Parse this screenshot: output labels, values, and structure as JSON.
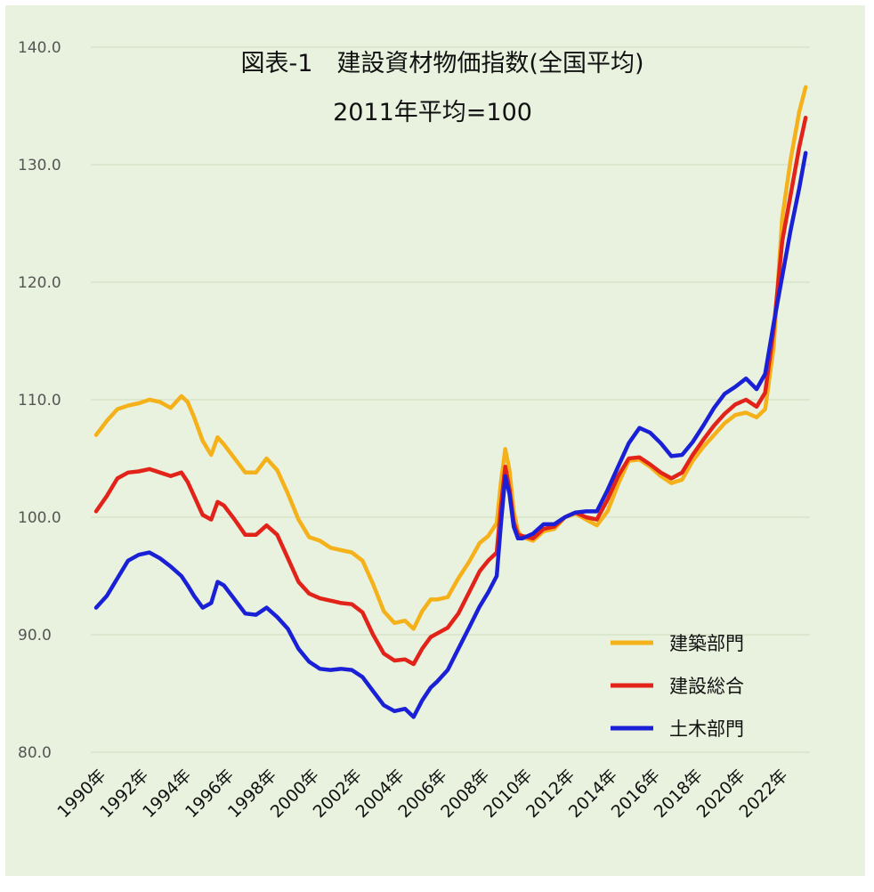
{
  "chart_data": {
    "type": "line",
    "title": "図表-1　建設資材物価指数(全国平均)",
    "subtitle": "2011年平均=100",
    "ylim": [
      80,
      140
    ],
    "yticks": [
      80,
      90,
      100,
      110,
      120,
      130,
      140
    ],
    "ytick_labels": [
      "80.0",
      "90.0",
      "100.0",
      "110.0",
      "120.0",
      "130.0",
      "140.0"
    ],
    "xlim": [
      1990.0,
      2023.5
    ],
    "xticks": [
      1990,
      1992,
      1994,
      1996,
      1998,
      2000,
      2002,
      2004,
      2006,
      2008,
      2010,
      2012,
      2014,
      2016,
      2018,
      2020,
      2022
    ],
    "xtick_labels": [
      "1990年",
      "1992年",
      "1994年",
      "1996年",
      "1998年",
      "2000年",
      "2002年",
      "2004年",
      "2006年",
      "2008年",
      "2010年",
      "2012年",
      "2014年",
      "2016年",
      "2018年",
      "2020年",
      "2022年"
    ],
    "grid": "horizontal",
    "legend_position": "bottom-right",
    "background_color": "#e9f2df",
    "series": [
      {
        "name": "建築部門",
        "color": "#f5b11a",
        "points": [
          [
            1990.0,
            107.0
          ],
          [
            1990.5,
            108.2
          ],
          [
            1991.0,
            109.2
          ],
          [
            1991.5,
            109.5
          ],
          [
            1992.0,
            109.7
          ],
          [
            1992.5,
            110.0
          ],
          [
            1993.0,
            109.8
          ],
          [
            1993.5,
            109.3
          ],
          [
            1994.0,
            110.3
          ],
          [
            1994.3,
            109.8
          ],
          [
            1994.6,
            108.5
          ],
          [
            1995.0,
            106.5
          ],
          [
            1995.4,
            105.3
          ],
          [
            1995.7,
            106.8
          ],
          [
            1996.0,
            106.2
          ],
          [
            1996.5,
            105.0
          ],
          [
            1997.0,
            103.8
          ],
          [
            1997.5,
            103.8
          ],
          [
            1998.0,
            105.0
          ],
          [
            1998.5,
            104.0
          ],
          [
            1999.0,
            102.0
          ],
          [
            1999.5,
            99.8
          ],
          [
            2000.0,
            98.3
          ],
          [
            2000.5,
            98.0
          ],
          [
            2001.0,
            97.4
          ],
          [
            2001.5,
            97.2
          ],
          [
            2002.0,
            97.0
          ],
          [
            2002.5,
            96.3
          ],
          [
            2003.0,
            94.3
          ],
          [
            2003.5,
            92.0
          ],
          [
            2004.0,
            91.0
          ],
          [
            2004.5,
            91.2
          ],
          [
            2004.9,
            90.5
          ],
          [
            2005.3,
            92.0
          ],
          [
            2005.7,
            93.0
          ],
          [
            2006.0,
            93.0
          ],
          [
            2006.5,
            93.2
          ],
          [
            2007.0,
            94.8
          ],
          [
            2007.5,
            96.2
          ],
          [
            2008.0,
            97.8
          ],
          [
            2008.4,
            98.4
          ],
          [
            2008.8,
            99.5
          ],
          [
            2009.0,
            103.0
          ],
          [
            2009.2,
            105.8
          ],
          [
            2009.4,
            104.0
          ],
          [
            2009.6,
            100.5
          ],
          [
            2009.8,
            98.8
          ],
          [
            2010.0,
            98.3
          ],
          [
            2010.5,
            98.0
          ],
          [
            2011.0,
            98.8
          ],
          [
            2011.5,
            99.0
          ],
          [
            2012.0,
            100.0
          ],
          [
            2012.5,
            100.3
          ],
          [
            2013.0,
            99.8
          ],
          [
            2013.5,
            99.3
          ],
          [
            2014.0,
            100.5
          ],
          [
            2014.5,
            102.8
          ],
          [
            2015.0,
            104.8
          ],
          [
            2015.5,
            104.9
          ],
          [
            2016.0,
            104.3
          ],
          [
            2016.5,
            103.5
          ],
          [
            2017.0,
            102.9
          ],
          [
            2017.5,
            103.2
          ],
          [
            2018.0,
            104.8
          ],
          [
            2018.5,
            106.0
          ],
          [
            2019.0,
            107.0
          ],
          [
            2019.5,
            108.0
          ],
          [
            2020.0,
            108.7
          ],
          [
            2020.5,
            108.9
          ],
          [
            2021.0,
            108.5
          ],
          [
            2021.4,
            109.2
          ],
          [
            2021.8,
            114.5
          ],
          [
            2022.2,
            125.5
          ],
          [
            2022.6,
            130.5
          ],
          [
            2023.0,
            134.5
          ],
          [
            2023.3,
            136.6
          ]
        ]
      },
      {
        "name": "建設総合",
        "color": "#e2231a",
        "points": [
          [
            1990.0,
            100.5
          ],
          [
            1990.5,
            101.8
          ],
          [
            1991.0,
            103.3
          ],
          [
            1991.5,
            103.8
          ],
          [
            1992.0,
            103.9
          ],
          [
            1992.5,
            104.1
          ],
          [
            1993.0,
            103.8
          ],
          [
            1993.5,
            103.5
          ],
          [
            1994.0,
            103.8
          ],
          [
            1994.3,
            103.0
          ],
          [
            1994.6,
            101.8
          ],
          [
            1995.0,
            100.2
          ],
          [
            1995.4,
            99.8
          ],
          [
            1995.7,
            101.3
          ],
          [
            1996.0,
            101.0
          ],
          [
            1996.5,
            99.8
          ],
          [
            1997.0,
            98.5
          ],
          [
            1997.5,
            98.5
          ],
          [
            1998.0,
            99.3
          ],
          [
            1998.5,
            98.5
          ],
          [
            1999.0,
            96.5
          ],
          [
            1999.5,
            94.5
          ],
          [
            2000.0,
            93.5
          ],
          [
            2000.5,
            93.1
          ],
          [
            2001.0,
            92.9
          ],
          [
            2001.5,
            92.7
          ],
          [
            2002.0,
            92.6
          ],
          [
            2002.5,
            91.9
          ],
          [
            2003.0,
            90.0
          ],
          [
            2003.5,
            88.4
          ],
          [
            2004.0,
            87.8
          ],
          [
            2004.5,
            87.9
          ],
          [
            2004.9,
            87.5
          ],
          [
            2005.3,
            88.8
          ],
          [
            2005.7,
            89.8
          ],
          [
            2006.0,
            90.1
          ],
          [
            2006.5,
            90.6
          ],
          [
            2007.0,
            91.8
          ],
          [
            2007.5,
            93.6
          ],
          [
            2008.0,
            95.4
          ],
          [
            2008.4,
            96.3
          ],
          [
            2008.8,
            97.0
          ],
          [
            2009.0,
            101.0
          ],
          [
            2009.2,
            104.3
          ],
          [
            2009.4,
            102.4
          ],
          [
            2009.6,
            99.6
          ],
          [
            2009.8,
            98.5
          ],
          [
            2010.0,
            98.4
          ],
          [
            2010.5,
            98.2
          ],
          [
            2011.0,
            99.0
          ],
          [
            2011.5,
            99.2
          ],
          [
            2012.0,
            100.0
          ],
          [
            2012.5,
            100.4
          ],
          [
            2013.0,
            100.0
          ],
          [
            2013.5,
            99.8
          ],
          [
            2014.0,
            101.5
          ],
          [
            2014.5,
            103.5
          ],
          [
            2015.0,
            105.0
          ],
          [
            2015.5,
            105.1
          ],
          [
            2016.0,
            104.5
          ],
          [
            2016.5,
            103.8
          ],
          [
            2017.0,
            103.3
          ],
          [
            2017.5,
            103.8
          ],
          [
            2018.0,
            105.3
          ],
          [
            2018.5,
            106.6
          ],
          [
            2019.0,
            107.8
          ],
          [
            2019.5,
            108.8
          ],
          [
            2020.0,
            109.6
          ],
          [
            2020.5,
            110.0
          ],
          [
            2021.0,
            109.4
          ],
          [
            2021.4,
            110.6
          ],
          [
            2021.8,
            116.0
          ],
          [
            2022.2,
            123.5
          ],
          [
            2022.6,
            127.5
          ],
          [
            2023.0,
            131.5
          ],
          [
            2023.3,
            134.0
          ]
        ]
      },
      {
        "name": "土木部門",
        "color": "#1a20d6",
        "points": [
          [
            1990.0,
            92.3
          ],
          [
            1990.5,
            93.3
          ],
          [
            1991.0,
            94.8
          ],
          [
            1991.5,
            96.3
          ],
          [
            1992.0,
            96.8
          ],
          [
            1992.5,
            97.0
          ],
          [
            1993.0,
            96.5
          ],
          [
            1993.5,
            95.8
          ],
          [
            1994.0,
            95.0
          ],
          [
            1994.3,
            94.2
          ],
          [
            1994.6,
            93.3
          ],
          [
            1995.0,
            92.3
          ],
          [
            1995.4,
            92.7
          ],
          [
            1995.7,
            94.5
          ],
          [
            1996.0,
            94.2
          ],
          [
            1996.5,
            93.0
          ],
          [
            1997.0,
            91.8
          ],
          [
            1997.5,
            91.7
          ],
          [
            1998.0,
            92.3
          ],
          [
            1998.5,
            91.5
          ],
          [
            1999.0,
            90.5
          ],
          [
            1999.5,
            88.8
          ],
          [
            2000.0,
            87.7
          ],
          [
            2000.5,
            87.1
          ],
          [
            2001.0,
            87.0
          ],
          [
            2001.5,
            87.1
          ],
          [
            2002.0,
            87.0
          ],
          [
            2002.5,
            86.4
          ],
          [
            2003.0,
            85.2
          ],
          [
            2003.5,
            84.0
          ],
          [
            2004.0,
            83.5
          ],
          [
            2004.5,
            83.7
          ],
          [
            2004.9,
            83.0
          ],
          [
            2005.3,
            84.4
          ],
          [
            2005.7,
            85.5
          ],
          [
            2006.0,
            86.0
          ],
          [
            2006.5,
            87.0
          ],
          [
            2007.0,
            88.8
          ],
          [
            2007.5,
            90.6
          ],
          [
            2008.0,
            92.4
          ],
          [
            2008.4,
            93.6
          ],
          [
            2008.8,
            95.0
          ],
          [
            2009.0,
            99.5
          ],
          [
            2009.2,
            103.5
          ],
          [
            2009.4,
            102.0
          ],
          [
            2009.6,
            99.2
          ],
          [
            2009.8,
            98.2
          ],
          [
            2010.0,
            98.2
          ],
          [
            2010.5,
            98.6
          ],
          [
            2011.0,
            99.4
          ],
          [
            2011.5,
            99.4
          ],
          [
            2012.0,
            100.0
          ],
          [
            2012.5,
            100.4
          ],
          [
            2013.0,
            100.5
          ],
          [
            2013.5,
            100.5
          ],
          [
            2014.0,
            102.3
          ],
          [
            2014.5,
            104.3
          ],
          [
            2015.0,
            106.3
          ],
          [
            2015.5,
            107.6
          ],
          [
            2016.0,
            107.2
          ],
          [
            2016.5,
            106.3
          ],
          [
            2017.0,
            105.2
          ],
          [
            2017.5,
            105.3
          ],
          [
            2018.0,
            106.4
          ],
          [
            2018.5,
            107.8
          ],
          [
            2019.0,
            109.3
          ],
          [
            2019.5,
            110.5
          ],
          [
            2020.0,
            111.1
          ],
          [
            2020.5,
            111.8
          ],
          [
            2021.0,
            110.9
          ],
          [
            2021.4,
            112.2
          ],
          [
            2021.8,
            116.5
          ],
          [
            2022.2,
            120.5
          ],
          [
            2022.6,
            124.5
          ],
          [
            2023.0,
            128.0
          ],
          [
            2023.3,
            131.0
          ]
        ]
      }
    ]
  }
}
